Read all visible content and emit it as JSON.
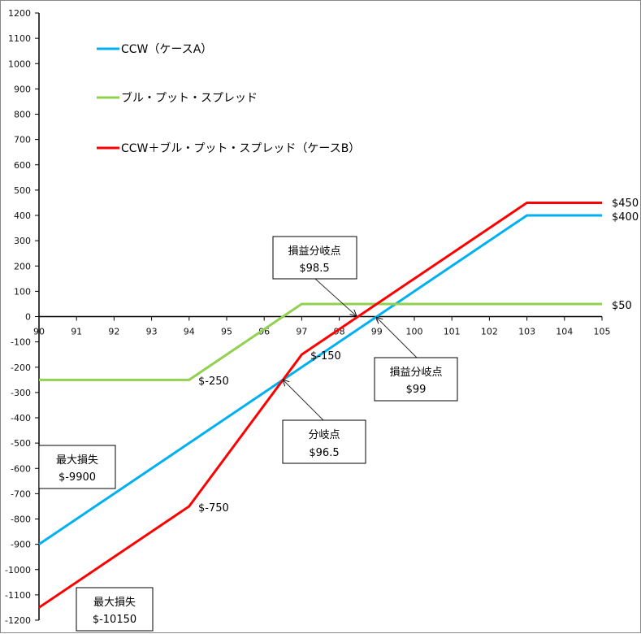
{
  "chart_data": {
    "type": "line",
    "title": "",
    "xlabel": "",
    "ylabel": "",
    "xlim": [
      90,
      105
    ],
    "ylim": [
      -1200,
      1200
    ],
    "x_ticks": [
      "90",
      "91",
      "92",
      "93",
      "94",
      "95",
      "96",
      "97",
      "98",
      "99",
      "100",
      "101",
      "102",
      "103",
      "104",
      "105"
    ],
    "y_ticks": [
      "1200",
      "1100",
      "1000",
      "900",
      "800",
      "700",
      "600",
      "500",
      "400",
      "300",
      "200",
      "100",
      "0",
      "-100",
      "-200",
      "-300",
      "-400",
      "-500",
      "-600",
      "-700",
      "-800",
      "-900",
      "-1000",
      "-1100",
      "-1200"
    ],
    "grid": false,
    "legend_position": "top-left",
    "series": [
      {
        "name": "CCW（ケースA）",
        "color": "#00b0f0",
        "points": [
          [
            90,
            -900
          ],
          [
            103,
            400
          ],
          [
            105,
            400
          ]
        ]
      },
      {
        "name": "ブル・プット・スプレッド",
        "color": "#92d050",
        "points": [
          [
            90,
            -250
          ],
          [
            94,
            -250
          ],
          [
            97,
            50
          ],
          [
            105,
            50
          ]
        ]
      },
      {
        "name": "CCW＋ブル・プット・スプレッド（ケースB）",
        "color": "#ff0000",
        "points": [
          [
            90,
            -1150
          ],
          [
            94,
            -750
          ],
          [
            97,
            -150
          ],
          [
            103,
            450
          ],
          [
            105,
            450
          ]
        ]
      }
    ],
    "data_labels": [
      "$450",
      "$400",
      "$50",
      "$-250",
      "$-150",
      "$-750"
    ],
    "annotations": [
      {
        "title": "損益分岐点",
        "value": "$98.5",
        "point": [
          98.5,
          0
        ]
      },
      {
        "title": "損益分岐点",
        "value": "$99",
        "point": [
          99,
          0
        ]
      },
      {
        "title": "分岐点",
        "value": "$96.5",
        "point": [
          96.5,
          -250
        ]
      },
      {
        "title": "最大損失",
        "value": "$-9900"
      },
      {
        "title": "最大損失",
        "value": "$-10150"
      }
    ]
  }
}
